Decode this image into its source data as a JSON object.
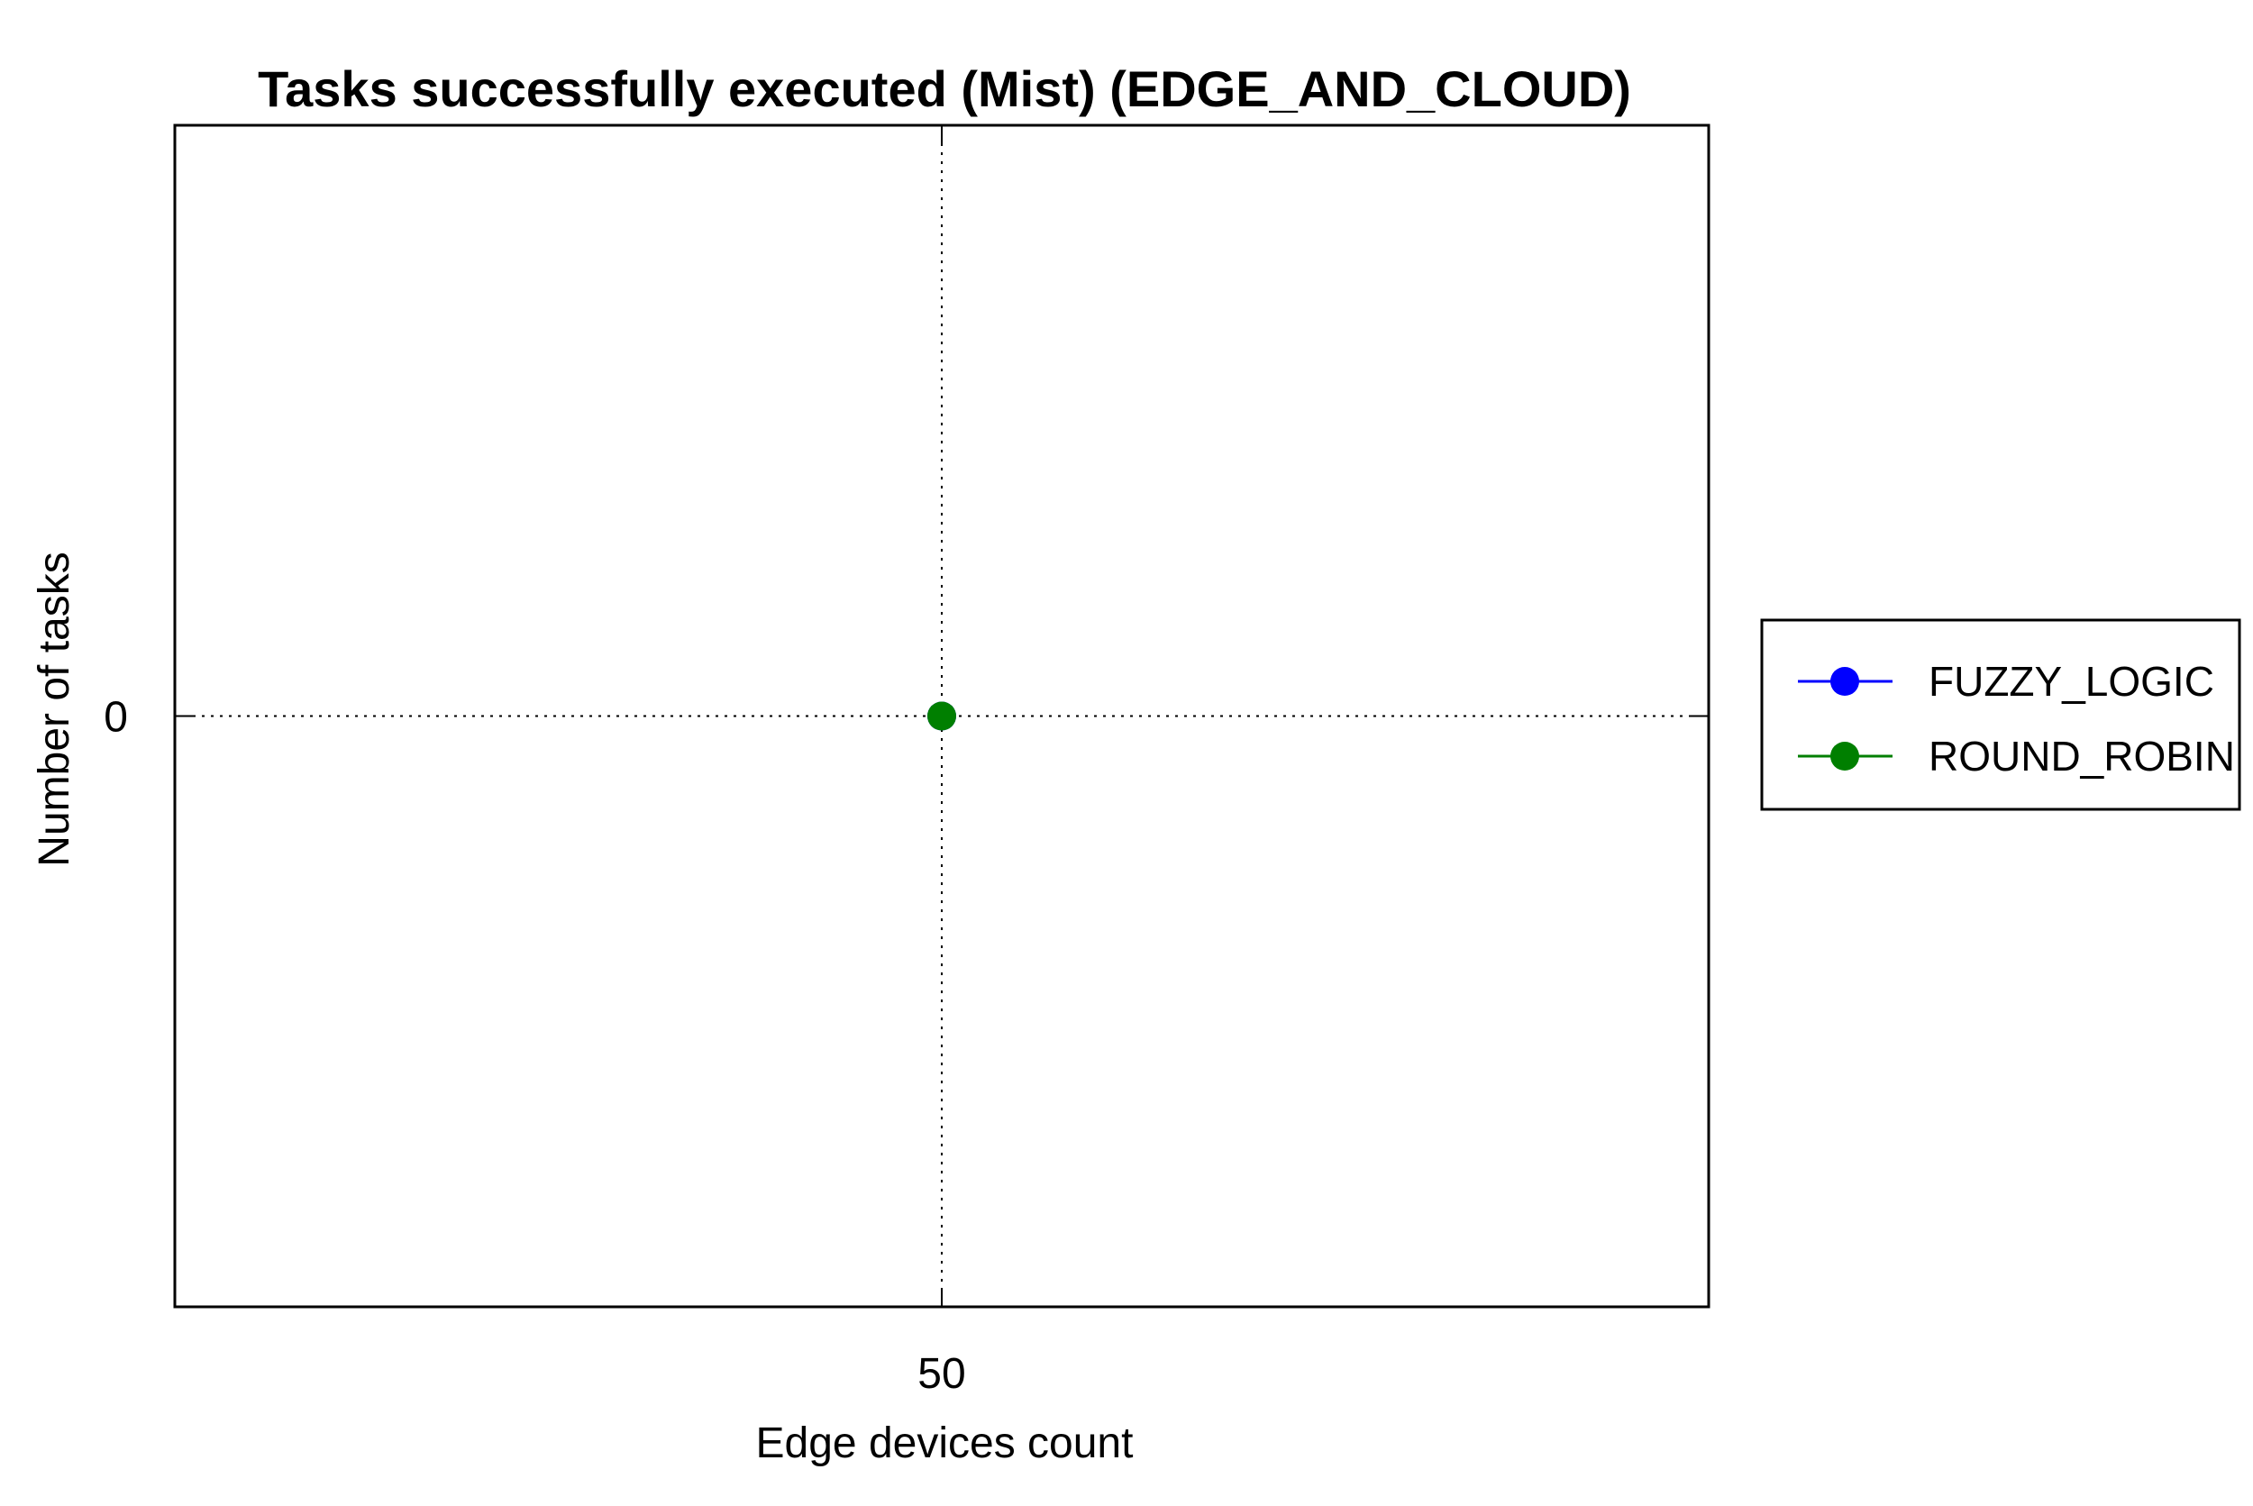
{
  "chart_data": {
    "type": "line",
    "title": "Tasks successfully executed (Mist) (EDGE_AND_CLOUD)",
    "xlabel": "Edge devices count",
    "ylabel": "Number of tasks",
    "x": [
      50
    ],
    "x_tick_labels": [
      "50"
    ],
    "y_tick_labels": [
      "0"
    ],
    "xlim": [
      49,
      51
    ],
    "ylim": [
      -1,
      1
    ],
    "grid": true,
    "legend_position": "right-outside",
    "series": [
      {
        "name": "FUZZY_LOGIC",
        "color": "#0000ff",
        "marker": "circle",
        "values": [
          0
        ]
      },
      {
        "name": "ROUND_ROBIN",
        "color": "#007f00",
        "marker": "circle",
        "values": [
          0
        ]
      }
    ]
  }
}
